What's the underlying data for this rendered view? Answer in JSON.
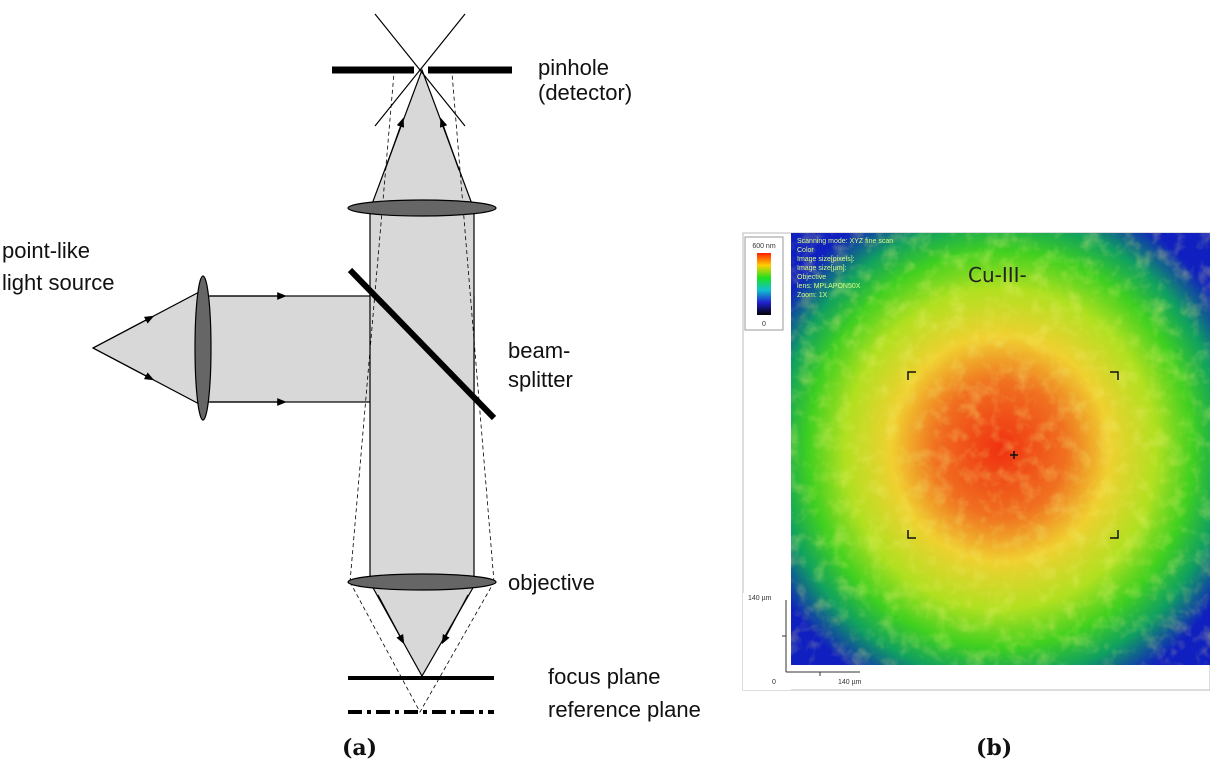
{
  "figure_a": {
    "labels": {
      "pinhole": "pinhole",
      "detector": "(detector)",
      "source_1": "point-like",
      "source_2": "light source",
      "splitter_1": "beam-",
      "splitter_2": "splitter",
      "objective": "objective",
      "focus": "focus plane",
      "reference": "reference plane"
    },
    "caption": "(a)"
  },
  "figure_b": {
    "colorbar": {
      "max": "600 nm",
      "min": "0"
    },
    "info": [
      "Scanning mode: XYZ fine scan",
      "Color",
      "Image size[pixels]:",
      "Image size[µm]:",
      "Objective",
      "lens: MPLAPON50X",
      "Zoom: 1X"
    ],
    "sample_label": "Cu-III-",
    "scale": {
      "top": "140 µm",
      "origin": "0",
      "right": "140 µm"
    },
    "caption": "(b)"
  }
}
